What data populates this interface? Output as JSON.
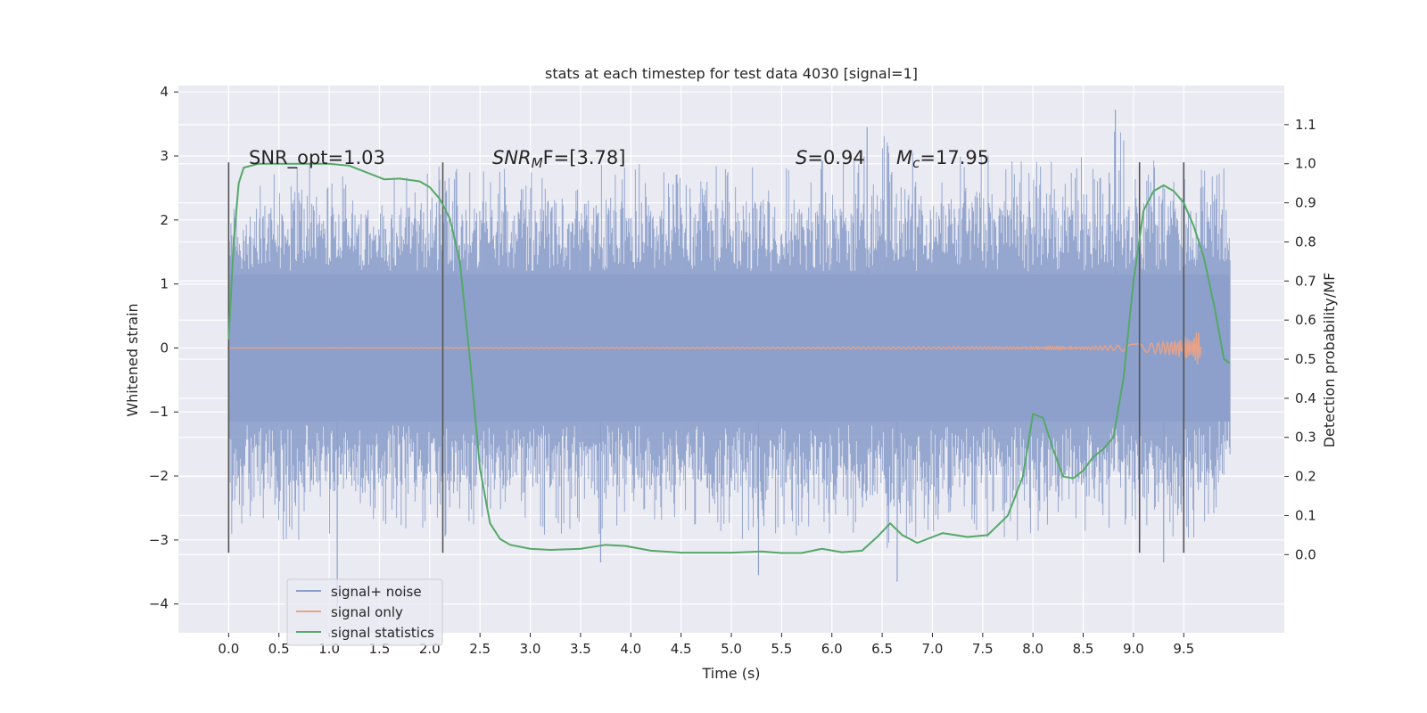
{
  "chart_data": {
    "type": "line",
    "title": "stats at each timestep for test data 4030 [signal=1]",
    "xlabel": "Time (s)",
    "ylabel": "Whitened strain",
    "y2label": "Detection probability/MF",
    "xlim": [
      -0.5,
      10.5
    ],
    "ylim": [
      -4.45,
      4.1
    ],
    "y2lim": [
      -0.2,
      1.2
    ],
    "grid": true,
    "legend_position": "lower-left",
    "x_ticks": [
      "0.0",
      "0.5",
      "1.0",
      "1.5",
      "2.0",
      "2.5",
      "3.0",
      "3.5",
      "4.0",
      "4.5",
      "5.0",
      "5.5",
      "6.0",
      "6.5",
      "7.0",
      "7.5",
      "8.0",
      "8.5",
      "9.0",
      "9.5"
    ],
    "y_ticks": [
      "4",
      "3",
      "2",
      "1",
      "0",
      "−1",
      "−2",
      "−3",
      "−4"
    ],
    "y2_ticks": [
      "1.1",
      "1.0",
      "0.9",
      "0.8",
      "0.7",
      "0.6",
      "0.5",
      "0.4",
      "0.3",
      "0.2",
      "0.1",
      "0.0"
    ],
    "annotations": {
      "snr_opt": "SNR_opt=1.03",
      "snr_mf_sym": "SNR",
      "snr_mf_sub": "M",
      "snr_mf_rest": "F=[3.78]",
      "s_sym": "S",
      "s_rest": "=0.94",
      "mc_sym": "M",
      "mc_sub": "c",
      "mc_rest": "=17.95"
    },
    "series": [
      {
        "name": "signal+ noise",
        "axis": "left",
        "color": "#8da0cb",
        "envelope": {
          "x": [
            0.0,
            0.2,
            0.5,
            1.0,
            1.5,
            2.0,
            2.5,
            3.0,
            3.5,
            4.0,
            4.5,
            5.0,
            5.5,
            6.0,
            6.5,
            7.0,
            7.5,
            8.0,
            8.5,
            8.8,
            9.0,
            9.5,
            9.96
          ],
          "upper": [
            2.4,
            2.7,
            2.9,
            3.0,
            2.8,
            3.0,
            2.9,
            2.8,
            3.0,
            2.9,
            2.8,
            2.9,
            2.9,
            3.0,
            3.4,
            2.9,
            3.1,
            3.0,
            3.0,
            3.7,
            3.0,
            3.0,
            2.8
          ],
          "lower": [
            -3.2,
            -3.0,
            -3.2,
            -2.9,
            -2.8,
            -3.1,
            -2.8,
            -2.9,
            -3.1,
            -2.9,
            -2.8,
            -3.0,
            -3.0,
            -3.0,
            -3.2,
            -2.9,
            -3.1,
            -3.0,
            -2.9,
            -3.1,
            -3.0,
            -3.3,
            -2.2
          ],
          "spikes": [
            [
              1.08,
              -4.05
            ],
            [
              3.7,
              -3.35
            ],
            [
              5.27,
              -3.55
            ],
            [
              6.65,
              -3.65
            ],
            [
              8.82,
              3.72
            ],
            [
              6.35,
              3.45
            ],
            [
              9.3,
              -3.35
            ]
          ]
        }
      },
      {
        "name": "signal only",
        "axis": "left",
        "color": "#e8a287",
        "x": [
          0.0,
          8.5,
          8.9,
          9.2,
          9.4,
          9.55,
          9.62,
          9.66,
          9.68
        ],
        "amplitude": [
          0.0,
          0.02,
          0.05,
          0.08,
          0.12,
          0.18,
          0.24,
          0.28,
          0.0
        ]
      },
      {
        "name": "signal statistics",
        "axis": "right",
        "color": "#55a868",
        "x": [
          0.0,
          0.05,
          0.1,
          0.15,
          0.3,
          0.6,
          0.8,
          1.0,
          1.2,
          1.3,
          1.45,
          1.55,
          1.7,
          1.9,
          2.0,
          2.1,
          2.2,
          2.3,
          2.4,
          2.5,
          2.6,
          2.7,
          2.8,
          3.0,
          3.2,
          3.5,
          3.75,
          3.95,
          4.2,
          4.5,
          5.0,
          5.3,
          5.5,
          5.7,
          5.9,
          6.1,
          6.3,
          6.45,
          6.58,
          6.7,
          6.85,
          7.1,
          7.35,
          7.55,
          7.75,
          7.9,
          8.0,
          8.1,
          8.2,
          8.3,
          8.4,
          8.5,
          8.6,
          8.7,
          8.8,
          8.9,
          9.0,
          9.1,
          9.2,
          9.3,
          9.4,
          9.5,
          9.6,
          9.7,
          9.8,
          9.9,
          9.96
        ],
        "values": [
          0.55,
          0.8,
          0.95,
          0.99,
          1.0,
          1.0,
          1.0,
          1.0,
          0.995,
          0.985,
          0.97,
          0.96,
          0.962,
          0.955,
          0.94,
          0.91,
          0.86,
          0.75,
          0.5,
          0.22,
          0.08,
          0.04,
          0.025,
          0.015,
          0.012,
          0.015,
          0.025,
          0.022,
          0.01,
          0.005,
          0.005,
          0.008,
          0.004,
          0.004,
          0.015,
          0.006,
          0.01,
          0.045,
          0.08,
          0.05,
          0.03,
          0.055,
          0.045,
          0.05,
          0.1,
          0.2,
          0.36,
          0.35,
          0.27,
          0.2,
          0.195,
          0.215,
          0.25,
          0.27,
          0.3,
          0.45,
          0.7,
          0.88,
          0.93,
          0.945,
          0.93,
          0.9,
          0.84,
          0.76,
          0.64,
          0.5,
          0.49
        ]
      }
    ],
    "vertical_lines": [
      {
        "x": 0.0,
        "y_range": [
          -3.2,
          2.9
        ]
      },
      {
        "x": 2.13,
        "y_range": [
          -3.2,
          2.9
        ]
      },
      {
        "x": 9.06,
        "y_range": [
          -3.2,
          2.9
        ]
      },
      {
        "x": 9.5,
        "y_range": [
          -3.2,
          2.9
        ]
      }
    ]
  }
}
